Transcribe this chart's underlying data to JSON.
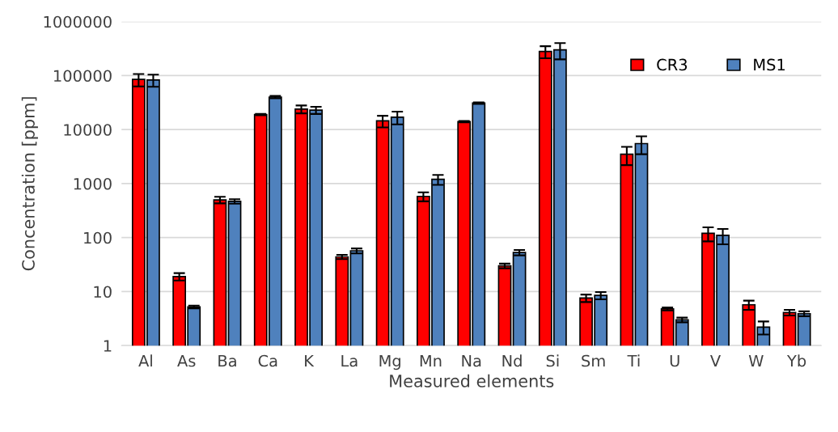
{
  "chart_data": {
    "type": "bar",
    "xlabel": "Measured elements",
    "ylabel": "Concentration [ppm]",
    "categories": [
      "Al",
      "As",
      "Ba",
      "Ca",
      "K",
      "La",
      "Mg",
      "Mn",
      "Na",
      "Nd",
      "Si",
      "Sm",
      "Ti",
      "U",
      "V",
      "W",
      "Yb"
    ],
    "series": [
      {
        "name": "CR3",
        "color": "#ff0000",
        "values": [
          85000,
          19,
          500,
          19000,
          24000,
          44,
          14500,
          580,
          14000,
          30,
          280000,
          7.6,
          3500,
          4.8,
          120,
          5.7,
          4.1
        ],
        "errors": [
          22000,
          3,
          70,
          500,
          4000,
          4,
          3500,
          110,
          400,
          3,
          70000,
          1.2,
          1300,
          0.3,
          35,
          1.1,
          0.5
        ]
      },
      {
        "name": "MS1",
        "color": "#4f81bd",
        "values": [
          83000,
          5.2,
          470,
          40000,
          23000,
          57,
          17000,
          1200,
          31000,
          53,
          300000,
          8.5,
          5500,
          3.0,
          110,
          2.2,
          3.9
        ],
        "errors": [
          21000,
          0.3,
          45,
          2000,
          3500,
          6,
          4500,
          250,
          1000,
          6,
          100000,
          1.3,
          2000,
          0.3,
          35,
          0.6,
          0.4
        ]
      }
    ],
    "log": "y",
    "ylim": [
      1,
      1000000
    ],
    "yticks": [
      1,
      10,
      100,
      1000,
      10000,
      100000,
      1000000
    ],
    "grid": "y",
    "legend": "top right"
  }
}
